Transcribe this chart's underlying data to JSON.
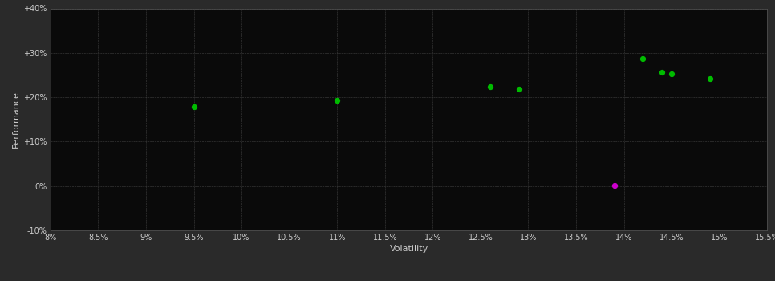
{
  "background_color": "#2a2a2a",
  "plot_bg_color": "#0a0a0a",
  "grid_color": "#404040",
  "text_color": "#cccccc",
  "xlabel": "Volatility",
  "ylabel": "Performance",
  "xlim": [
    0.08,
    0.155
  ],
  "ylim": [
    -0.1,
    0.4
  ],
  "xticks": [
    0.08,
    0.085,
    0.09,
    0.095,
    0.1,
    0.105,
    0.11,
    0.115,
    0.12,
    0.125,
    0.13,
    0.135,
    0.14,
    0.145,
    0.15,
    0.155
  ],
  "yticks": [
    -0.1,
    0.0,
    0.1,
    0.2,
    0.3,
    0.4
  ],
  "ytick_labels": [
    "-10%",
    "0%",
    "+10%",
    "+20%",
    "+30%",
    "+40%"
  ],
  "xtick_labels": [
    "8%",
    "8.5%",
    "9%",
    "9.5%",
    "10%",
    "10.5%",
    "11%",
    "11.5%",
    "12%",
    "12.5%",
    "13%",
    "13.5%",
    "14%",
    "14.5%",
    "15%",
    "15.5%"
  ],
  "green_points": [
    [
      0.095,
      0.178
    ],
    [
      0.11,
      0.193
    ],
    [
      0.126,
      0.224
    ],
    [
      0.129,
      0.218
    ],
    [
      0.142,
      0.287
    ],
    [
      0.144,
      0.257
    ],
    [
      0.145,
      0.253
    ],
    [
      0.149,
      0.241
    ]
  ],
  "magenta_points": [
    [
      0.139,
      0.002
    ]
  ],
  "point_size": 18,
  "green_color": "#00bb00",
  "magenta_color": "#cc00cc"
}
